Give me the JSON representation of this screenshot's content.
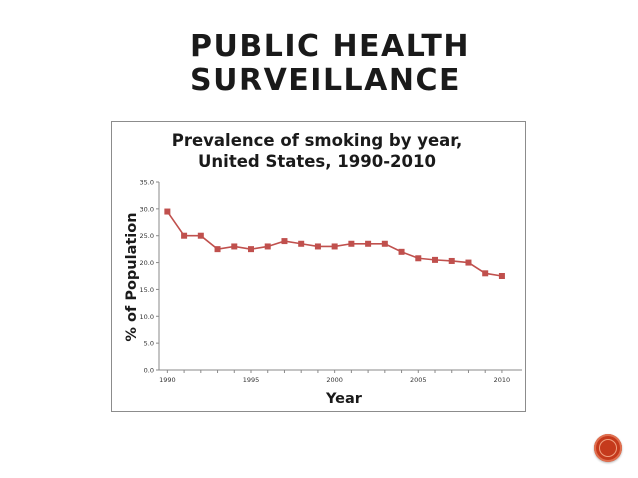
{
  "slide": {
    "title_line1": "Public Health",
    "title_line2": "Surveillance",
    "accent_color": "#c53a1c"
  },
  "chart_data": {
    "type": "line",
    "title_line1": "Prevalence of smoking by year,",
    "title_line2": "United States, 1990-2010",
    "xlabel": "Year",
    "ylabel": "% of Population",
    "xlim": [
      1989.5,
      2011.2
    ],
    "ylim": [
      0,
      35
    ],
    "x_ticks": [
      1990,
      1995,
      2000,
      2005,
      2010
    ],
    "y_ticks": [
      "0.0",
      "5.0",
      "10.0",
      "15.0",
      "20.0",
      "25.0",
      "30.0",
      "35.0"
    ],
    "grid": false,
    "legend": "none",
    "series": [
      {
        "color": "#c0504d",
        "x": [
          1990,
          1991,
          1992,
          1993,
          1994,
          1995,
          1996,
          1997,
          1998,
          1999,
          2000,
          2001,
          2002,
          2003,
          2004,
          2005,
          2006,
          2007,
          2008,
          2009,
          2010
        ],
        "y": [
          29.5,
          25.0,
          25.0,
          22.5,
          23.0,
          22.5,
          23.0,
          24.0,
          23.5,
          23.0,
          23.0,
          23.5,
          23.5,
          23.5,
          22.0,
          20.8,
          20.5,
          20.3,
          20.0,
          18.0,
          17.5
        ]
      }
    ]
  }
}
